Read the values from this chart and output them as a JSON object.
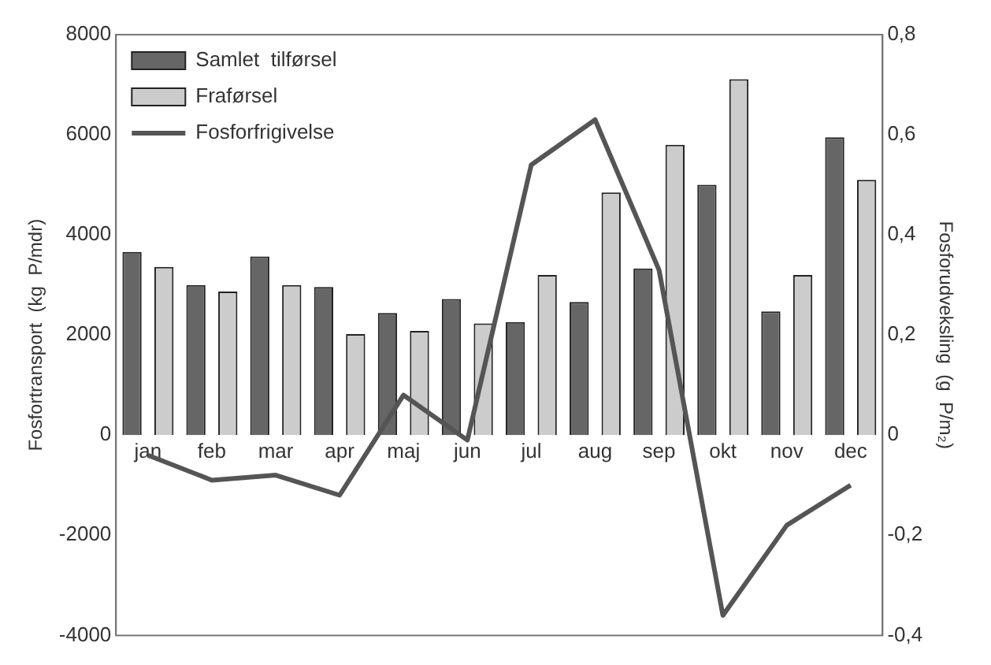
{
  "chart_data": {
    "type": "bar",
    "ylabel": "Fosfortransport  (kg  P/mdr)",
    "y2label": "Fosforudveksling  (g  P/m₂)",
    "categories": [
      "jan",
      "feb",
      "mar",
      "apr",
      "maj",
      "jun",
      "jul",
      "aug",
      "sep",
      "okt",
      "nov",
      "dec"
    ],
    "series": [
      {
        "name": "Samlet  tilførsel",
        "color": "#666666",
        "values": [
          3660,
          3000,
          3570,
          2960,
          2440,
          2720,
          2260,
          2660,
          3330,
          5000,
          2470,
          5950
        ]
      },
      {
        "name": "Fraførsel",
        "color": "#cccccc",
        "values": [
          3360,
          2870,
          3000,
          2020,
          2080,
          2230,
          3200,
          4850,
          5800,
          7110,
          3200,
          5100
        ]
      },
      {
        "name": "Fosforfrigivelse",
        "type": "line",
        "axis": "y2",
        "color": "#555555",
        "values": [
          -0.04,
          -0.09,
          -0.08,
          -0.12,
          0.08,
          -0.01,
          0.54,
          0.63,
          0.33,
          -0.36,
          -0.18,
          -0.1
        ]
      }
    ],
    "ylim": [
      -4000,
      8000
    ],
    "yticks": [
      -4000,
      -2000,
      0,
      2000,
      4000,
      6000,
      8000
    ],
    "y2lim": [
      -0.4,
      0.8
    ],
    "y2ticks": [
      {
        "value": -0.4,
        "label": "-0,4"
      },
      {
        "value": -0.2,
        "label": "-0,2"
      },
      {
        "value": 0,
        "label": "0"
      },
      {
        "value": 0.2,
        "label": "0,2"
      },
      {
        "value": 0.4,
        "label": "0,4"
      },
      {
        "value": 0.6,
        "label": "0,6"
      },
      {
        "value": 0.8,
        "label": "0,8"
      }
    ],
    "legend": "top left",
    "grid": false,
    "marker": "none"
  }
}
